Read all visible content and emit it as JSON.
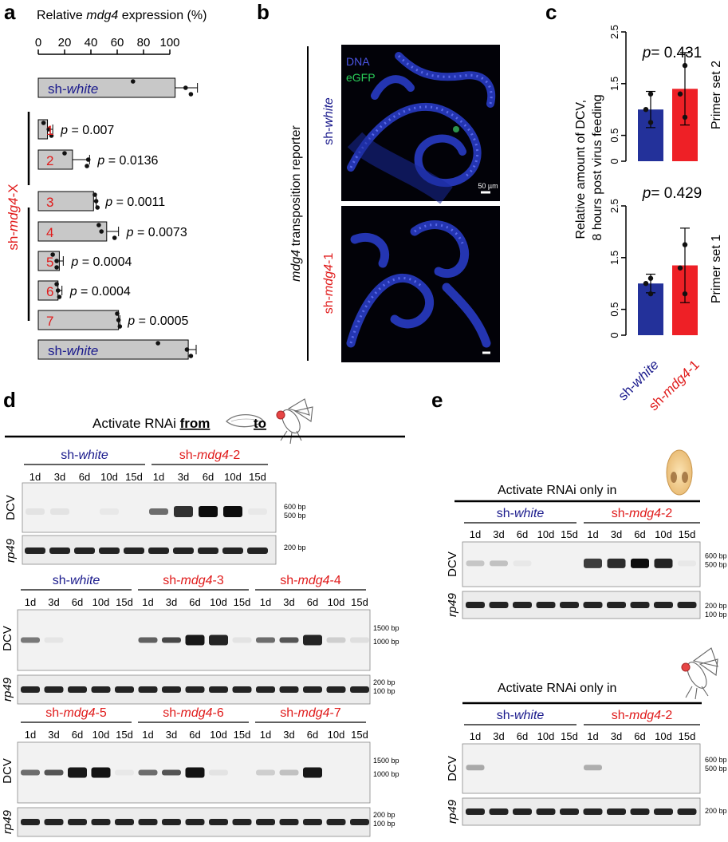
{
  "panels": {
    "a": {
      "letter": "a",
      "title_pre": "Relative ",
      "title_gene": "mdg4",
      "title_post": " expression (%)",
      "ticks": [
        "0",
        "20",
        "40",
        "60",
        "80",
        "100"
      ],
      "group_label_pre": "sh-",
      "group_label_gene": "mdg4",
      "group_label_post": "-X",
      "bars": [
        {
          "label_pre": "sh-",
          "label_it": "white",
          "num": "",
          "value": 104,
          "err": 17,
          "pvalue": "",
          "points": [
            72,
            112,
            116
          ]
        },
        {
          "label_pre": "",
          "label_it": "",
          "num": "1",
          "value": 7,
          "err": 4,
          "pvalue": "p = 0.007",
          "points": [
            4,
            8,
            10
          ]
        },
        {
          "label_pre": "",
          "label_it": "",
          "num": "2",
          "value": 26,
          "err": 13,
          "pvalue": "p = 0.0136",
          "points": [
            20,
            38,
            37
          ]
        },
        {
          "label_pre": "",
          "label_it": "",
          "num": "3",
          "value": 42,
          "err": 2,
          "pvalue": "p = 0.0011",
          "points": [
            43,
            44,
            45
          ]
        },
        {
          "label_pre": "",
          "label_it": "",
          "num": "4",
          "value": 52,
          "err": 9,
          "pvalue": "p = 0.0073",
          "points": [
            46,
            48,
            58
          ]
        },
        {
          "label_pre": "",
          "label_it": "",
          "num": "5",
          "value": 16,
          "err": 3,
          "pvalue": "p = 0.0004",
          "points": [
            11,
            14,
            14
          ]
        },
        {
          "label_pre": "",
          "label_it": "",
          "num": "6",
          "value": 15,
          "err": 3,
          "pvalue": "p = 0.0004",
          "points": [
            14,
            15,
            16
          ]
        },
        {
          "label_pre": "",
          "label_it": "",
          "num": "7",
          "value": 61,
          "err": 1,
          "pvalue": "p = 0.0005",
          "points": [
            60,
            61,
            62
          ]
        },
        {
          "label_pre": "sh-",
          "label_it": "white",
          "num": "",
          "value": 114,
          "err": 6,
          "pvalue": "",
          "points": [
            91,
            113,
            116
          ]
        }
      ]
    },
    "b": {
      "letter": "b",
      "side_label_gene": "mdg4",
      "side_label_post": " transposition reporter",
      "top_label_pre": "sh-",
      "top_label_it": "white",
      "bottom_label_pre": "sh-",
      "bottom_label_it": "mdg4",
      "bottom_label_post": "-1",
      "dna_label": "DNA",
      "egfp_label": "eGFP",
      "scale_label": "50 µm"
    },
    "c": {
      "letter": "c",
      "ylabel_line1": "Relative amount of DCV,",
      "ylabel_line2": "8 hours post virus feeding",
      "yticks": [
        "0",
        "0.5",
        "1.5",
        "2.5"
      ],
      "xlabel1_pre": "sh-",
      "xlabel1_it": "white",
      "xlabel2_pre": "sh-",
      "xlabel2_it": "mdg4",
      "xlabel2_post": "-1",
      "plots": [
        {
          "side": "Primer set 2",
          "p_italic": "p",
          "p_value": "= 0.431"
        },
        {
          "side": "Primer set 1",
          "p_italic": "p",
          "p_value": "= 0.429"
        }
      ]
    },
    "d": {
      "letter": "d",
      "header_pre": "Activate RNAi ",
      "header_from": "from",
      "header_to": "to",
      "days": [
        "1d",
        "3d",
        "6d",
        "10d",
        "15d"
      ],
      "lane_dcv": "DCV",
      "lane_rp49": "rp49",
      "row1_groups": [
        {
          "pre": "sh-",
          "it": "white",
          "post": "",
          "color": "#1a1a8c"
        },
        {
          "pre": "sh-",
          "it": "mdg4",
          "post": "-2",
          "color": "#e01b1b"
        }
      ],
      "row2_groups": [
        {
          "pre": "sh-",
          "it": "white",
          "post": "",
          "color": "#1a1a8c"
        },
        {
          "pre": "sh-",
          "it": "mdg4",
          "post": "-3",
          "color": "#e01b1b"
        },
        {
          "pre": "sh-",
          "it": "mdg4",
          "post": "-4",
          "color": "#e01b1b"
        }
      ],
      "row3_groups": [
        {
          "pre": "sh-",
          "it": "mdg4",
          "post": "-5",
          "color": "#e01b1b"
        },
        {
          "pre": "sh-",
          "it": "mdg4",
          "post": "-6",
          "color": "#e01b1b"
        },
        {
          "pre": "sh-",
          "it": "mdg4",
          "post": "-7",
          "color": "#e01b1b"
        }
      ],
      "markers_row1": {
        "m600": "600 bp",
        "m500": "500 bp",
        "m200": "200 bp"
      },
      "markers_row2": {
        "m1500": "1500 bp",
        "m1000": "1000 bp",
        "m200": "200 bp",
        "m100": "100 bp"
      }
    },
    "e": {
      "letter": "e",
      "header1": "Activate RNAi only in",
      "header2": "Activate RNAi only in",
      "groups": [
        {
          "pre": "sh-",
          "it": "white",
          "post": "",
          "color": "#1a1a8c"
        },
        {
          "pre": "sh-",
          "it": "mdg4",
          "post": "-2",
          "color": "#e01b1b"
        }
      ],
      "markers": {
        "m600": "600 bp",
        "m500": "500 bp",
        "m200": "200 bp",
        "m100": "100 bp"
      }
    }
  },
  "colors": {
    "blue": "#1a1a8c",
    "red": "#e01b1b",
    "bar_blue": "#23319a",
    "bar_red": "#ee2026",
    "bar_grey": "#c8c8c8"
  }
}
